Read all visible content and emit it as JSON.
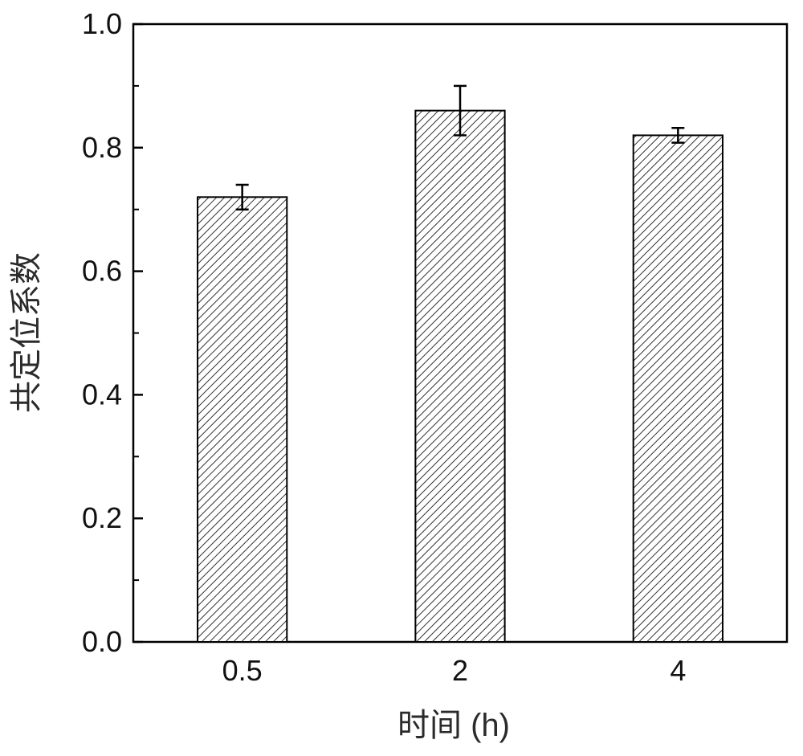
{
  "chart_data": {
    "type": "bar",
    "categories": [
      "0.5",
      "2",
      "4"
    ],
    "values": [
      0.72,
      0.86,
      0.82
    ],
    "errors": [
      0.02,
      0.04,
      0.012
    ],
    "xlabel": "时间 (h)",
    "ylabel": "共定位系数",
    "ylim": [
      0,
      1.0
    ],
    "yticks": [
      0.0,
      0.2,
      0.4,
      0.6,
      0.8,
      1.0
    ],
    "ytick_labels": [
      "0.0",
      "0.2",
      "0.4",
      "0.6",
      "0.8",
      "1.0"
    ],
    "grid": false,
    "legend": "none",
    "bar_fill": "hatched",
    "colors": {
      "bar_stroke": "#000000",
      "hatch": "#333333",
      "axis": "#000000"
    }
  }
}
